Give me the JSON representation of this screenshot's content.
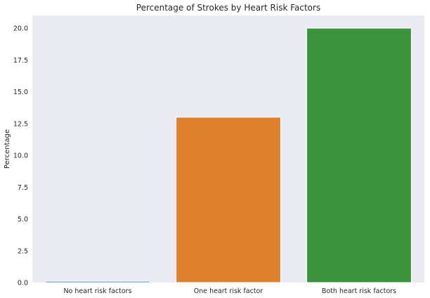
{
  "chart_data": {
    "type": "bar",
    "title": "Percentage of Strokes by Heart Risk Factors",
    "xlabel": "",
    "ylabel": "Percentage",
    "categories": [
      "No heart risk factors",
      "One heart risk factor",
      "Both heart risk factors"
    ],
    "values": [
      0.1,
      13.0,
      20.0
    ],
    "colors": [
      "#1f77b4",
      "#e07f2c",
      "#3a923a"
    ],
    "ylim": [
      0,
      21
    ],
    "yticks": [
      0.0,
      2.5,
      5.0,
      7.5,
      10.0,
      12.5,
      15.0,
      17.5,
      20.0
    ],
    "grid": false,
    "background_color": "#eaeaf2"
  }
}
